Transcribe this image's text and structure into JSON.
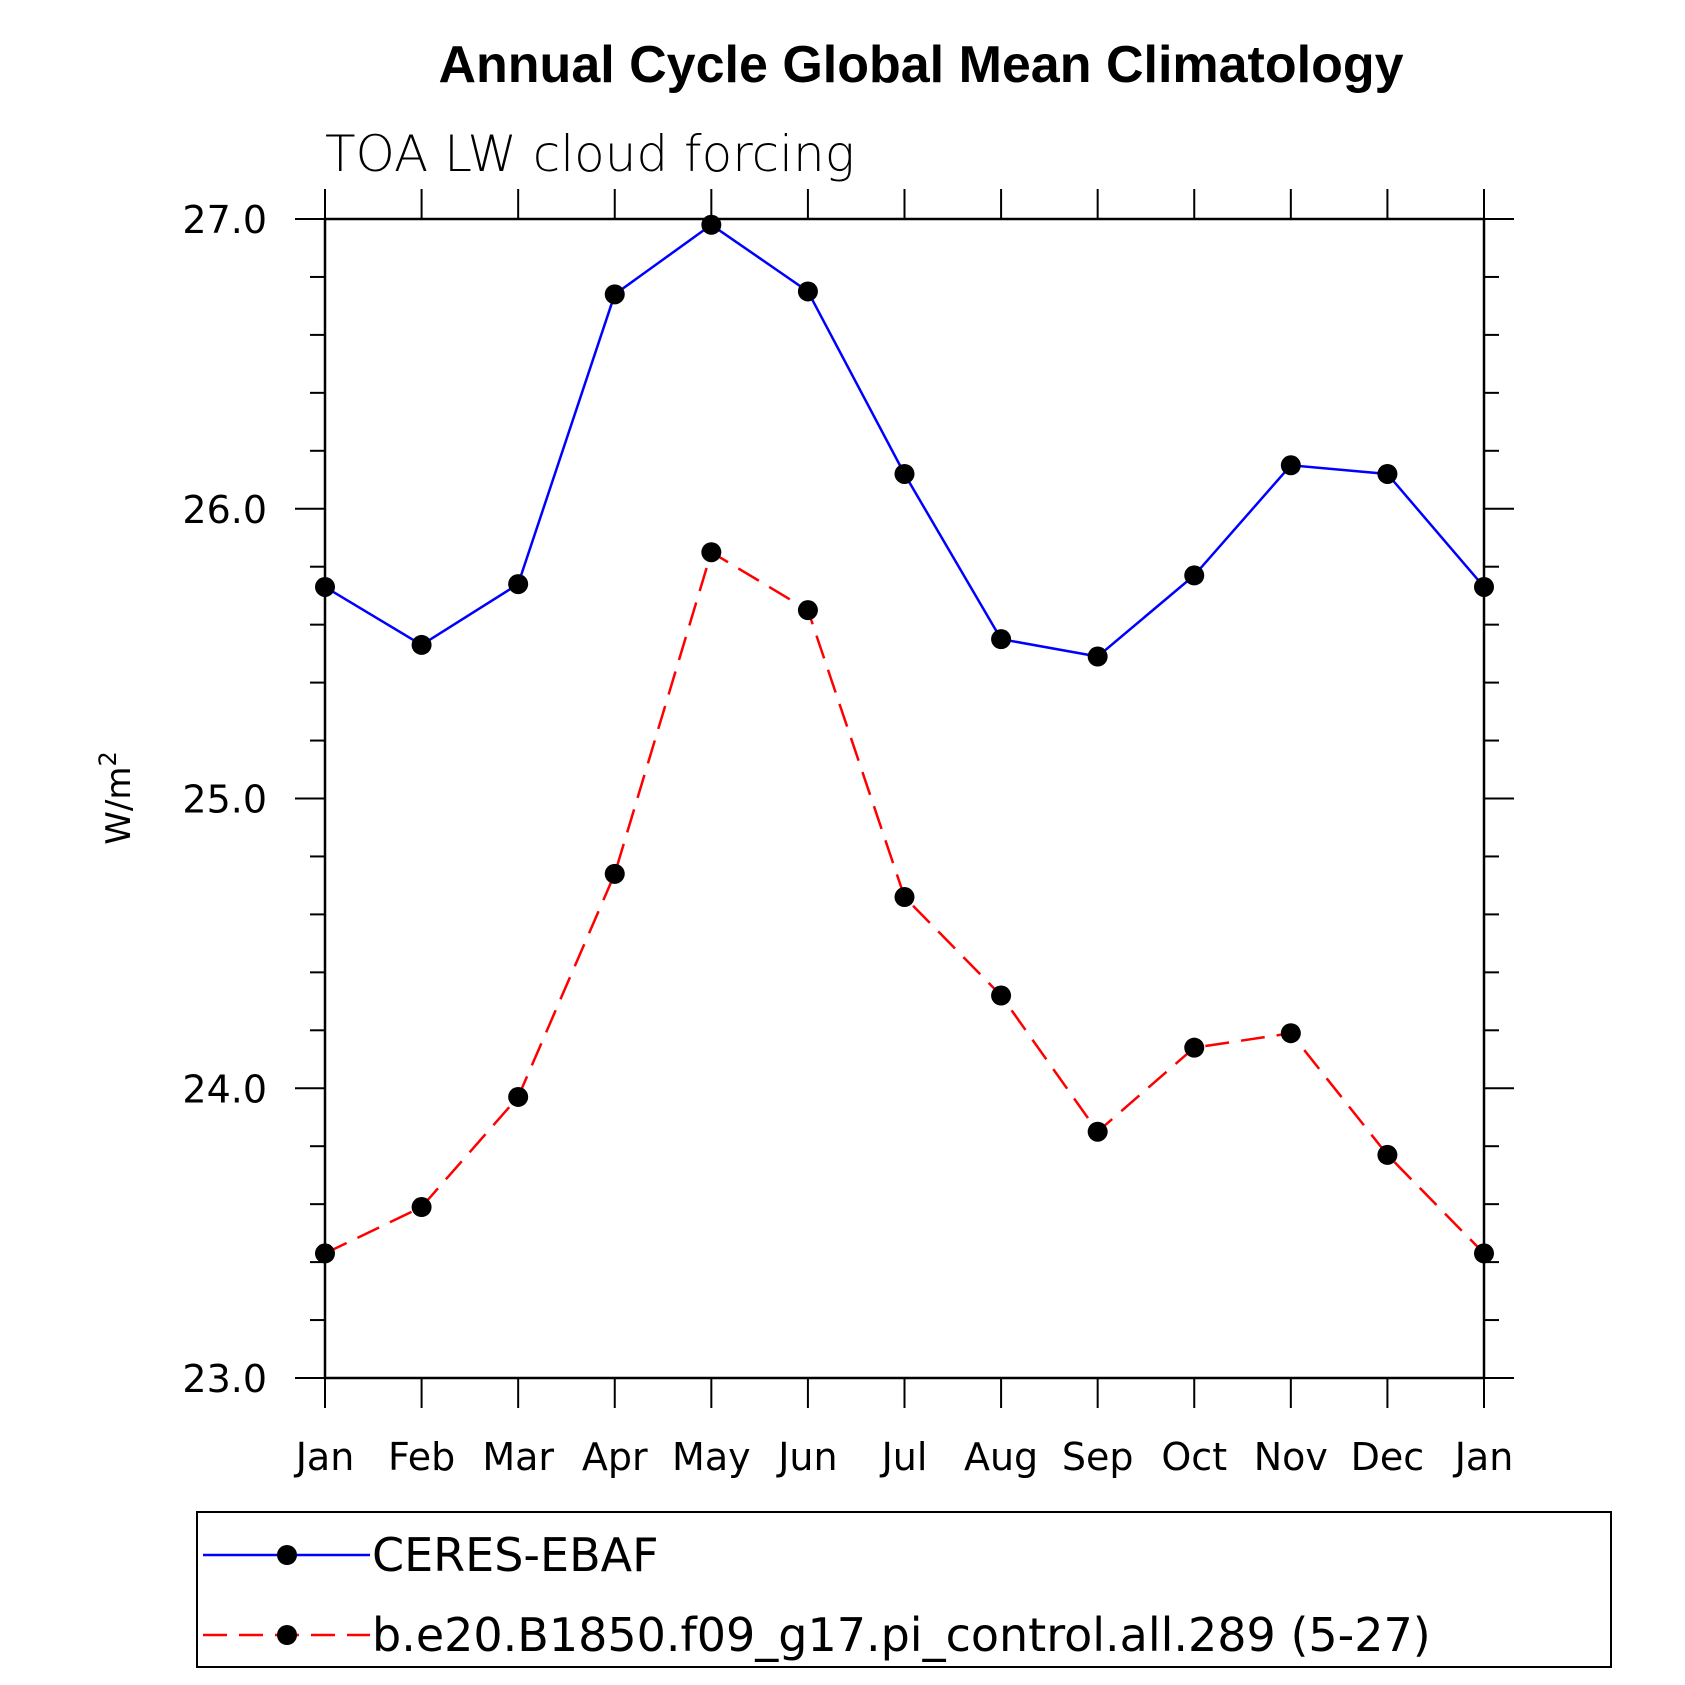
{
  "chart_data": {
    "type": "line",
    "title": "Annual Cycle Global Mean Climatology",
    "subtitle": "TOA LW cloud forcing",
    "ylabel": "W/m",
    "ylabel_superscript": "2",
    "ylim": [
      23.0,
      27.0
    ],
    "yticks": [
      "23.0",
      "24.0",
      "25.0",
      "26.0",
      "27.0"
    ],
    "categories": [
      "Jan",
      "Feb",
      "Mar",
      "Apr",
      "May",
      "Jun",
      "Jul",
      "Aug",
      "Sep",
      "Oct",
      "Nov",
      "Dec",
      "Jan"
    ],
    "series": [
      {
        "name": "CERES-EBAF",
        "color": "#0000ff",
        "dash": "solid",
        "values": [
          25.73,
          25.53,
          25.74,
          26.74,
          26.98,
          26.75,
          26.12,
          25.55,
          25.49,
          25.77,
          26.15,
          26.12,
          25.73
        ]
      },
      {
        "name": "b.e20.B1850.f09_g17.pi_control.all.289 (5-27)",
        "color": "#ff0000",
        "dash": "dashed",
        "values": [
          23.43,
          23.59,
          23.97,
          24.74,
          25.85,
          25.65,
          24.66,
          24.32,
          23.85,
          24.14,
          24.19,
          23.77,
          23.43
        ]
      }
    ],
    "grid": false,
    "legend_position": "bottom",
    "marker_color": "#000000"
  }
}
